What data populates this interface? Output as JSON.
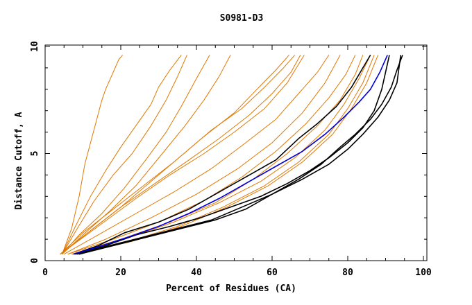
{
  "chart_data": {
    "type": "line",
    "title": "S0981-D3",
    "xlabel": "Percent of Residues (CA)",
    "ylabel": "Distance Cutoff, A",
    "xlim": [
      0,
      100
    ],
    "ylim": [
      0,
      10
    ],
    "xticks": [
      "0",
      "20",
      "40",
      "60",
      "80",
      "100"
    ],
    "yticks": [
      "0",
      "5",
      "10"
    ],
    "grid": false,
    "legend": "none",
    "colors": {
      "orange": "#e07800",
      "black": "#000000",
      "blue": "#0000dd"
    },
    "series": [
      {
        "color": "orange",
        "x": [
          4.5,
          7,
          9,
          10.5,
          12,
          13.5,
          15,
          16,
          17.5,
          19.5,
          20.5
        ],
        "y": [
          0.3,
          1.5,
          3,
          4.5,
          5.5,
          6.5,
          7.5,
          8,
          8.6,
          9.4,
          9.6
        ]
      },
      {
        "color": "orange",
        "x": [
          4.5,
          8,
          12,
          16,
          20,
          24,
          28,
          30,
          33,
          36
        ],
        "y": [
          0.3,
          1.6,
          3,
          4.2,
          5.3,
          6.3,
          7.3,
          8.1,
          8.9,
          9.6
        ]
      },
      {
        "color": "orange",
        "x": [
          4.5,
          8.5,
          13,
          18,
          23,
          28,
          32,
          35,
          37.5
        ],
        "y": [
          0.3,
          1.5,
          2.8,
          4,
          5,
          6.3,
          7.5,
          8.6,
          9.6
        ]
      },
      {
        "color": "orange",
        "x": [
          4.5,
          9,
          15,
          21,
          27,
          32,
          36,
          40,
          43.5
        ],
        "y": [
          0.3,
          1.2,
          2.2,
          3.4,
          4.8,
          6,
          7.2,
          8.5,
          9.6
        ]
      },
      {
        "color": "orange",
        "x": [
          4.5,
          10,
          17,
          24,
          31,
          37,
          42,
          46,
          49
        ],
        "y": [
          0.3,
          1.2,
          2.3,
          3.5,
          5,
          6.3,
          7.5,
          8.6,
          9.6
        ]
      },
      {
        "color": "orange",
        "x": [
          4,
          10,
          18,
          26,
          34,
          42,
          50,
          56,
          61,
          64.5
        ],
        "y": [
          0.3,
          1.3,
          2.4,
          3.5,
          4.6,
          5.8,
          6.9,
          8,
          8.9,
          9.6
        ]
      },
      {
        "color": "orange",
        "x": [
          4,
          12,
          20,
          28,
          36,
          44,
          52,
          58,
          63,
          66
        ],
        "y": [
          0.3,
          1.4,
          2.5,
          3.7,
          4.9,
          6.1,
          7.1,
          8.1,
          9,
          9.6
        ]
      },
      {
        "color": "orange",
        "x": [
          4,
          12,
          20,
          29,
          38,
          46,
          54,
          60,
          65,
          67.5
        ],
        "y": [
          0.3,
          1.4,
          2.5,
          3.6,
          4.7,
          5.7,
          6.8,
          7.8,
          8.8,
          9.6
        ]
      },
      {
        "color": "orange",
        "x": [
          4,
          14,
          24,
          33,
          42,
          50,
          58,
          64,
          68.5
        ],
        "y": [
          0.3,
          1.6,
          2.9,
          4,
          5,
          6,
          7.1,
          8.3,
          9.6
        ]
      },
      {
        "color": "orange",
        "x": [
          5,
          14,
          24,
          34,
          44,
          53,
          61,
          67,
          72,
          75
        ],
        "y": [
          0.3,
          1.2,
          2.2,
          3.2,
          4.3,
          5.5,
          6.6,
          7.8,
          8.8,
          9.6
        ]
      },
      {
        "color": "orange",
        "x": [
          6,
          16,
          28,
          40,
          51,
          60,
          68,
          74,
          78
        ],
        "y": [
          0.3,
          1,
          2,
          3.1,
          4.3,
          5.5,
          6.9,
          8.3,
          9.6
        ]
      },
      {
        "color": "orange",
        "x": [
          6,
          18,
          30,
          42,
          52,
          61,
          69,
          75,
          79.5,
          82
        ],
        "y": [
          0.3,
          1,
          1.8,
          2.8,
          3.9,
          5.1,
          6.4,
          7.6,
          8.7,
          9.6
        ]
      },
      {
        "color": "orange",
        "x": [
          7,
          20,
          33,
          45,
          55,
          64,
          72,
          78,
          82,
          84
        ],
        "y": [
          0.3,
          1,
          1.8,
          2.7,
          3.8,
          5,
          6.3,
          7.5,
          8.7,
          9.6
        ]
      },
      {
        "color": "orange",
        "x": [
          7,
          21,
          34,
          46,
          57,
          66,
          74,
          79,
          83,
          86
        ],
        "y": [
          0.3,
          1,
          1.8,
          2.7,
          3.7,
          4.8,
          6.1,
          7.3,
          8.5,
          9.6
        ]
      },
      {
        "color": "orange",
        "x": [
          8,
          22,
          35,
          47,
          58,
          67,
          75,
          80,
          84,
          87
        ],
        "y": [
          0.3,
          0.9,
          1.6,
          2.5,
          3.5,
          4.6,
          5.9,
          7.1,
          8.3,
          9.6
        ]
      },
      {
        "color": "orange",
        "x": [
          8,
          23,
          36,
          48,
          59,
          68,
          76,
          81,
          85,
          88
        ],
        "y": [
          0.3,
          0.9,
          1.6,
          2.5,
          3.5,
          4.6,
          5.9,
          7.1,
          8.3,
          9.6
        ]
      },
      {
        "color": "black",
        "x": [
          7.5,
          14,
          21,
          30,
          38,
          46,
          54,
          61,
          67,
          72,
          77,
          81,
          84,
          86
        ],
        "y": [
          0.3,
          0.7,
          1.3,
          1.8,
          2.4,
          3.2,
          4,
          4.7,
          5.7,
          6.4,
          7.2,
          8.1,
          9,
          9.6
        ]
      },
      {
        "color": "black",
        "x": [
          8,
          16,
          24,
          33,
          41,
          49,
          57,
          64,
          70,
          75,
          80,
          84,
          87,
          89,
          91
        ],
        "y": [
          0.3,
          0.7,
          1.2,
          1.6,
          2,
          2.5,
          3,
          3.6,
          4.2,
          4.8,
          5.5,
          6.2,
          7,
          8,
          9.6
        ]
      },
      {
        "color": "black",
        "x": [
          8.5,
          17,
          26,
          35,
          44,
          52,
          60,
          68,
          75,
          80,
          84,
          88,
          91,
          93,
          94
        ],
        "y": [
          0.3,
          0.7,
          1.1,
          1.5,
          1.9,
          2.5,
          3.1,
          3.8,
          4.5,
          5.2,
          5.9,
          6.7,
          7.5,
          8.3,
          9.6
        ]
      },
      {
        "color": "black",
        "x": [
          9,
          18,
          27,
          36,
          45,
          53,
          60,
          67,
          73,
          78,
          82,
          86,
          89,
          91.5,
          93,
          94.5
        ],
        "y": [
          0.3,
          0.7,
          1.1,
          1.5,
          1.9,
          2.4,
          3.1,
          3.8,
          4.5,
          5.3,
          5.9,
          6.6,
          7.3,
          8.1,
          8.9,
          9.6
        ]
      },
      {
        "color": "blue",
        "x": [
          7.5,
          15,
          22,
          30,
          38,
          46,
          54,
          61,
          68,
          74,
          79,
          83,
          86,
          88.5,
          90.5
        ],
        "y": [
          0.3,
          0.7,
          1.1,
          1.6,
          2.2,
          2.9,
          3.7,
          4.4,
          5.1,
          5.9,
          6.7,
          7.4,
          8,
          8.8,
          9.6
        ]
      }
    ]
  }
}
